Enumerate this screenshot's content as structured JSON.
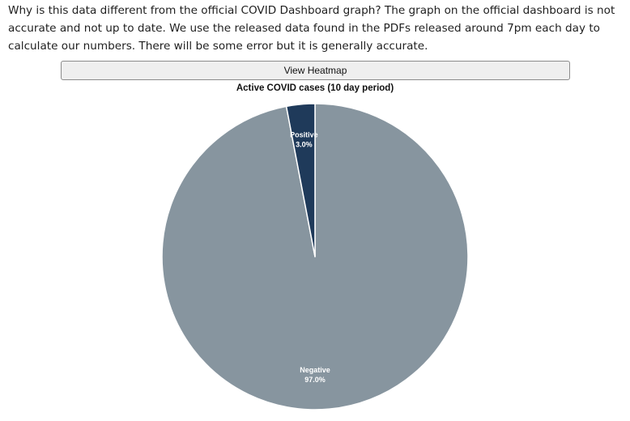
{
  "intro": {
    "text": "Why is this data different from the official COVID Dashboard graph? The graph on the official dashboard is not accurate and not up to date. We use the released data found in the PDFs released around 7pm each day to calculate our numbers. There will be some error but it is generally accurate."
  },
  "controls": {
    "heatmap_label": "View Heatmap"
  },
  "chart_data": {
    "type": "pie",
    "title": "Active COVID cases (10 day period)",
    "start_angle": "12 o'clock, clockwise",
    "slices": [
      {
        "name": "Negative",
        "percent_label": "97.0%",
        "value": 97.0,
        "color": "#87959f"
      },
      {
        "name": "Positive",
        "percent_label": "3.0%",
        "value": 3.0,
        "color": "#1f3a5a"
      }
    ],
    "slice_border_color": "#ffffff"
  }
}
